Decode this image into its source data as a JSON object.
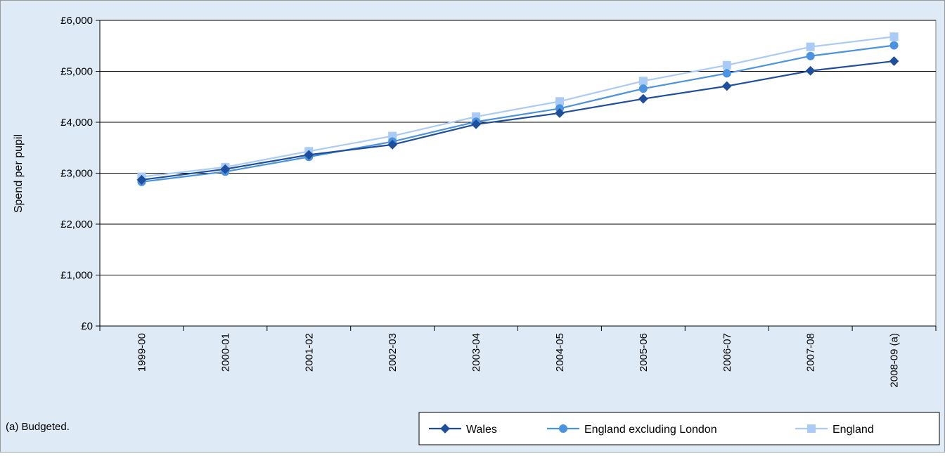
{
  "chart_data": {
    "type": "line",
    "title": "",
    "xlabel": "",
    "ylabel": "Spend per pupil",
    "ylim": [
      0,
      6000
    ],
    "y_ticks": [
      0,
      1000,
      2000,
      3000,
      4000,
      5000,
      6000
    ],
    "y_tick_labels": [
      "£0",
      "£1,000",
      "£2,000",
      "£3,000",
      "£4,000",
      "£5,000",
      "£6,000"
    ],
    "categories": [
      "1999-00",
      "2000-01",
      "2001-02",
      "2002-03",
      "2003-04",
      "2004-05",
      "2005-06",
      "2006-07",
      "2007-08",
      "2008-09 (a)"
    ],
    "grid": "horizontal",
    "legend_position": "bottom-right",
    "series": [
      {
        "name": "Wales",
        "marker": "diamond",
        "color": "#1f4e9c",
        "values": [
          2870,
          3080,
          3360,
          3560,
          3960,
          4180,
          4460,
          4710,
          5010,
          5200
        ]
      },
      {
        "name": "England excluding London",
        "marker": "circle",
        "color": "#4b93e0",
        "values": [
          2830,
          3030,
          3320,
          3620,
          4010,
          4270,
          4660,
          4960,
          5300,
          5510
        ]
      },
      {
        "name": "England",
        "marker": "square",
        "color": "#a9cbf5",
        "values": [
          2930,
          3120,
          3430,
          3730,
          4110,
          4410,
          4810,
          5120,
          5480,
          5680
        ]
      }
    ],
    "footnote": "(a) Budgeted."
  },
  "colors": {
    "background": "#deebf7",
    "plot_background": "#ffffff",
    "gridline": "#000000",
    "border": "#9a9a9a",
    "text": "#000000"
  }
}
